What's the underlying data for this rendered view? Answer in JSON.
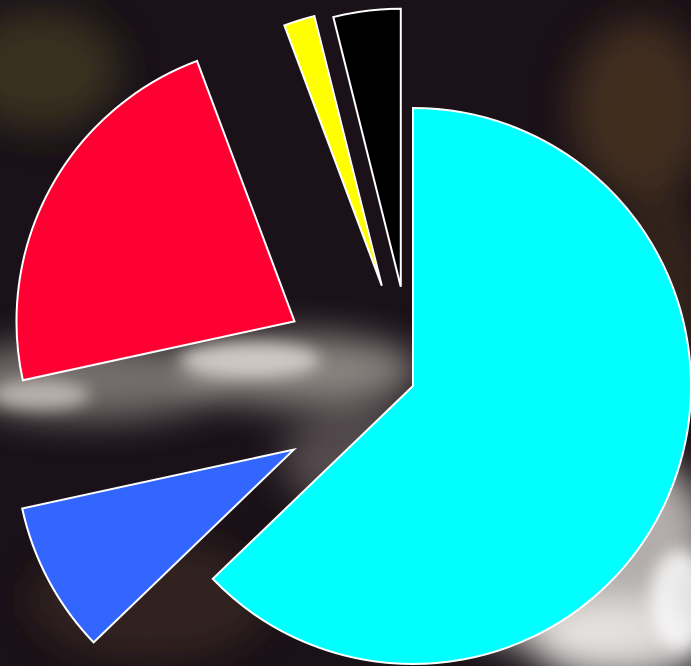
{
  "chart_data": {
    "type": "pie",
    "title": "",
    "legend": "none",
    "start_angle_deg": 0,
    "direction": "clockwise",
    "exploded": true,
    "slice_border_color": "#ffffff",
    "slices": [
      {
        "value": 62.8,
        "color": "#00ffff"
      },
      {
        "value": 8.8,
        "color": "#3366ff"
      },
      {
        "value": 22.7,
        "color": "#ff0033"
      },
      {
        "value": 1.8,
        "color": "#ffff00"
      },
      {
        "value": 3.9,
        "color": "#000000"
      }
    ]
  },
  "background": {
    "base_color": "#1a1218",
    "highlight_color": "#e8e4e0",
    "mid_color": "#5a4a3a"
  }
}
